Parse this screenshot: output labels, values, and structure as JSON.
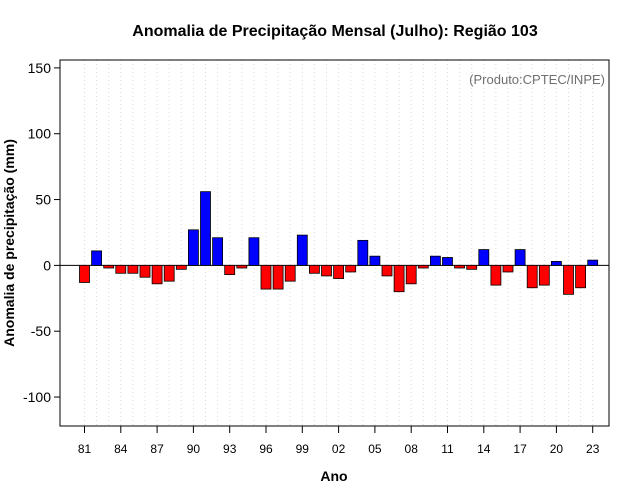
{
  "chart_data": {
    "type": "bar",
    "title": "Anomalia de Precipitação Mensal (Julho): Região 103",
    "xlabel": "Ano",
    "ylabel": "Anomalia de precipitação (mm)",
    "annotation": "(Produto:CPTEC/INPE)",
    "ylim": [
      -122,
      156
    ],
    "yticks": [
      150,
      100,
      50,
      0,
      -50,
      -100
    ],
    "xtick_labels": [
      "81",
      "84",
      "87",
      "90",
      "93",
      "96",
      "99",
      "02",
      "05",
      "08",
      "11",
      "14",
      "17",
      "20",
      "23"
    ],
    "categories": [
      "1981",
      "1982",
      "1983",
      "1984",
      "1985",
      "1986",
      "1987",
      "1988",
      "1989",
      "1990",
      "1991",
      "1992",
      "1993",
      "1994",
      "1995",
      "1996",
      "1997",
      "1998",
      "1999",
      "2000",
      "2001",
      "2002",
      "2003",
      "2004",
      "2005",
      "2006",
      "2007",
      "2008",
      "2009",
      "2010",
      "2011",
      "2012",
      "2013",
      "2014",
      "2015",
      "2016",
      "2017",
      "2018",
      "2019",
      "2020",
      "2021",
      "2022",
      "2023"
    ],
    "values": [
      -13,
      11,
      -2,
      -6,
      -6,
      -9,
      -14,
      -12,
      -3,
      27,
      56,
      21,
      -7,
      -2,
      21,
      -18,
      -18,
      -12,
      23,
      -6,
      -8,
      -10,
      -5,
      19,
      7,
      -8,
      -20,
      -14,
      -2,
      7,
      6,
      -2,
      -3,
      12,
      -15,
      -5,
      12,
      -17,
      -15,
      3,
      -22,
      -17,
      4
    ],
    "positive_color": "#0000ff",
    "negative_color": "#ff0000",
    "grid": "vertical dotted"
  }
}
